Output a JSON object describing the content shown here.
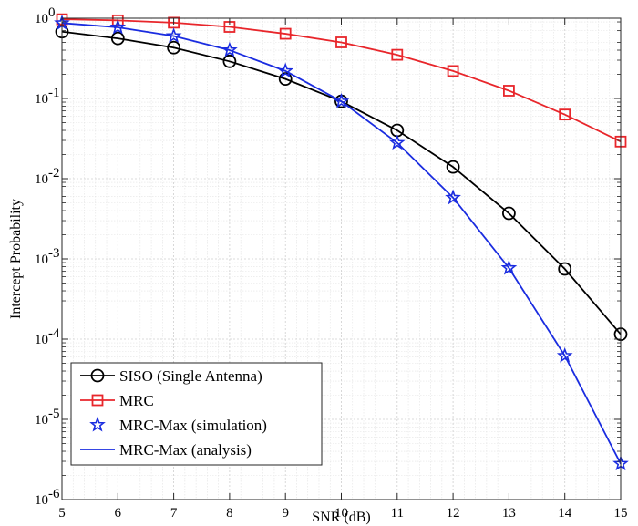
{
  "chart_data": {
    "type": "line",
    "xlabel": "SNR (dB)",
    "ylabel": "Intercept Probability",
    "xlim": [
      5,
      15
    ],
    "ylim": [
      1e-06,
      1
    ],
    "yscale": "log",
    "grid": true,
    "legend_position": "bottom-left",
    "x_ticks": [
      "5",
      "6",
      "7",
      "8",
      "9",
      "10",
      "11",
      "12",
      "13",
      "14",
      "15"
    ],
    "y_ticks": [
      {
        "base": "10",
        "exp": "-6"
      },
      {
        "base": "10",
        "exp": "-5"
      },
      {
        "base": "10",
        "exp": "-4"
      },
      {
        "base": "10",
        "exp": "-3"
      },
      {
        "base": "10",
        "exp": "-2"
      },
      {
        "base": "10",
        "exp": "-1"
      },
      {
        "base": "10",
        "exp": "0"
      }
    ],
    "x": [
      5,
      6,
      7,
      8,
      9,
      10,
      11,
      12,
      13,
      14,
      15
    ],
    "series": [
      {
        "name": "SISO (Single Antenna)",
        "color": "#000000",
        "marker": "circle",
        "line": true,
        "values": [
          0.68,
          0.56,
          0.43,
          0.29,
          0.175,
          0.092,
          0.04,
          0.014,
          0.0037,
          0.00075,
          0.000115
        ]
      },
      {
        "name": "MRC",
        "color": "#e8262b",
        "marker": "square",
        "line": true,
        "values": [
          0.97,
          0.94,
          0.88,
          0.78,
          0.64,
          0.5,
          0.35,
          0.22,
          0.125,
          0.063,
          0.029
        ]
      },
      {
        "name": "MRC-Max (simulation)",
        "color": "#1a2ce0",
        "marker": "star",
        "line": false,
        "values": [
          0.87,
          0.77,
          0.6,
          0.4,
          0.22,
          0.092,
          0.028,
          0.0058,
          0.00077,
          6.2e-05,
          2.8e-06
        ]
      },
      {
        "name": "MRC-Max (analysis)",
        "color": "#1a2ce0",
        "marker": "none",
        "line": true,
        "values": [
          0.87,
          0.77,
          0.6,
          0.4,
          0.22,
          0.092,
          0.028,
          0.0058,
          0.00077,
          6.2e-05,
          2.8e-06
        ]
      }
    ]
  }
}
